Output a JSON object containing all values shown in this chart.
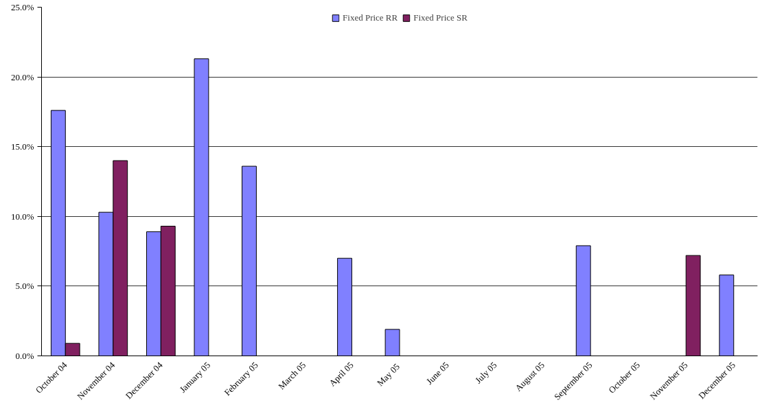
{
  "chart_data": {
    "type": "bar",
    "categories": [
      "October 04",
      "November 04",
      "December 04",
      "January 05",
      "February 05",
      "March 05",
      "April 05",
      "May  05",
      "June 05",
      "July 05",
      "August 05",
      "September 05",
      "October 05",
      "November 05",
      "December 05"
    ],
    "series": [
      {
        "name": "Fixed Price RR",
        "color": "#8080ff",
        "values": [
          17.6,
          10.3,
          8.9,
          21.3,
          13.6,
          null,
          7.0,
          1.9,
          null,
          null,
          null,
          7.9,
          null,
          null,
          5.8
        ]
      },
      {
        "name": "Fixed Price SR",
        "color": "#802060",
        "values": [
          0.9,
          14.0,
          9.3,
          null,
          null,
          null,
          null,
          null,
          null,
          null,
          null,
          null,
          null,
          7.2,
          null
        ]
      }
    ],
    "ylim": [
      0,
      25
    ],
    "yticks": [
      {
        "value": 0,
        "label": "0.0%"
      },
      {
        "value": 5,
        "label": "5.0%"
      },
      {
        "value": 10,
        "label": "10.0%"
      },
      {
        "value": 15,
        "label": "15.0%"
      },
      {
        "value": 20,
        "label": "20.0%"
      },
      {
        "value": 25,
        "label": "25.0%"
      }
    ],
    "grid": "y",
    "legend": "top"
  }
}
